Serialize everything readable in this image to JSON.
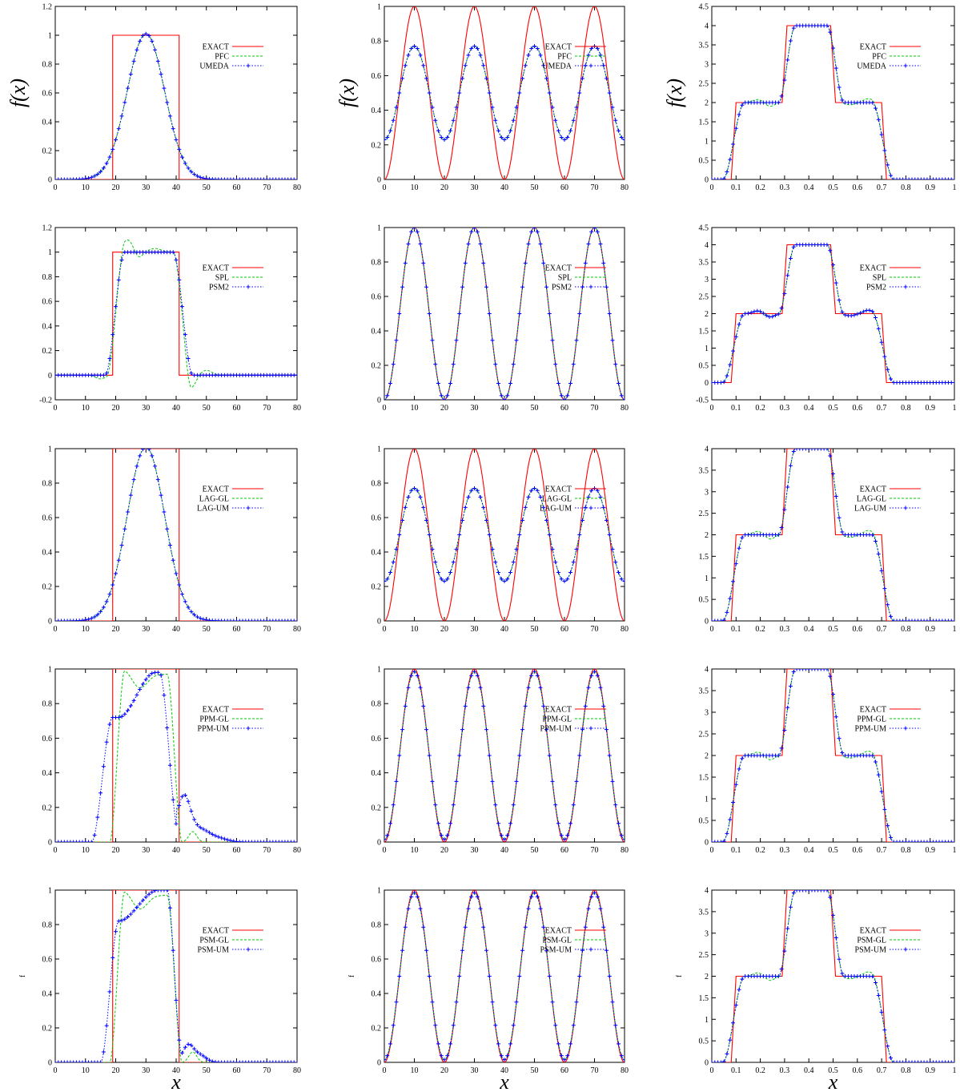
{
  "figure": {
    "ylabel_math": "f(x)",
    "ylabel_plain": "f",
    "xlabel": "x"
  },
  "colors": {
    "exact": "#ff0000",
    "green": "#00cc00",
    "blue": "#0000ff",
    "axis": "#000000"
  },
  "chart_data": [
    {
      "row": 0,
      "col": 0,
      "type": "line",
      "profile": "box",
      "ylim": [
        0,
        1.2
      ],
      "xlim": [
        0,
        80
      ],
      "yticks": [
        "0",
        "0.2",
        "0.4",
        "0.6",
        "0.8",
        "1",
        "1.2"
      ],
      "xticks": [
        "0",
        "10",
        "20",
        "30",
        "40",
        "50",
        "60",
        "70",
        "80"
      ],
      "legend": [
        "EXACT",
        "PFC",
        "UMEDA"
      ],
      "method_a": "smooth",
      "method_b": "smooth"
    },
    {
      "row": 0,
      "col": 1,
      "type": "line",
      "profile": "cos",
      "ylim": [
        0,
        1
      ],
      "xlim": [
        0,
        80
      ],
      "yticks": [
        "0",
        "0.2",
        "0.4",
        "0.6",
        "0.8",
        "1"
      ],
      "xticks": [
        "0",
        "10",
        "20",
        "30",
        "40",
        "50",
        "60",
        "70",
        "80"
      ],
      "legend": [
        "EXACT",
        "PFC",
        "UMEDA"
      ],
      "method_a": "damp",
      "method_b": "damp"
    },
    {
      "row": 0,
      "col": 2,
      "type": "line",
      "profile": "step",
      "ylim": [
        0,
        4.5
      ],
      "xlim": [
        0,
        1
      ],
      "yticks": [
        "0",
        "0.5",
        "1",
        "1.5",
        "2",
        "2.5",
        "3",
        "3.5",
        "4",
        "4.5"
      ],
      "xticks": [
        "0",
        "0.1",
        "0.2",
        "0.3",
        "0.4",
        "0.5",
        "0.6",
        "0.7",
        "0.8",
        "0.9",
        "1"
      ],
      "legend": [
        "EXACT",
        "PFC",
        "UMEDA"
      ],
      "method_a": "wiggle",
      "method_b": "smooth"
    },
    {
      "row": 1,
      "col": 0,
      "type": "line",
      "profile": "box",
      "ylim": [
        -0.2,
        1.2
      ],
      "xlim": [
        0,
        80
      ],
      "yticks": [
        "-0.2",
        "0",
        "0.2",
        "0.4",
        "0.6",
        "0.8",
        "1",
        "1.2"
      ],
      "xticks": [
        "0",
        "10",
        "20",
        "30",
        "40",
        "50",
        "60",
        "70",
        "80"
      ],
      "legend": [
        "EXACT",
        "SPL",
        "PSM2"
      ],
      "method_a": "gibbs",
      "method_b": "sharp"
    },
    {
      "row": 1,
      "col": 1,
      "type": "line",
      "profile": "cos",
      "ylim": [
        0,
        1
      ],
      "xlim": [
        0,
        80
      ],
      "yticks": [
        "0",
        "0.2",
        "0.4",
        "0.6",
        "0.8",
        "1"
      ],
      "xticks": [
        "0",
        "10",
        "20",
        "30",
        "40",
        "50",
        "60",
        "70",
        "80"
      ],
      "legend": [
        "EXACT",
        "SPL",
        "PSM2"
      ],
      "method_a": "exact",
      "method_b": "exact"
    },
    {
      "row": 1,
      "col": 2,
      "type": "line",
      "profile": "step",
      "ylim": [
        -0.5,
        4.5
      ],
      "xlim": [
        0,
        1
      ],
      "yticks": [
        "-0.5",
        "0",
        "0.5",
        "1",
        "1.5",
        "2",
        "2.5",
        "3",
        "3.5",
        "4",
        "4.5"
      ],
      "xticks": [
        "0",
        "0.1",
        "0.2",
        "0.3",
        "0.4",
        "0.5",
        "0.6",
        "0.7",
        "0.8",
        "0.9",
        "1"
      ],
      "legend": [
        "EXACT",
        "SPL",
        "PSM2"
      ],
      "method_a": "wiggle",
      "method_b": "wiggle"
    },
    {
      "row": 2,
      "col": 0,
      "type": "line",
      "profile": "box",
      "ylim": [
        0,
        1
      ],
      "xlim": [
        0,
        80
      ],
      "yticks": [
        "0",
        "0.2",
        "0.4",
        "0.6",
        "0.8",
        "1"
      ],
      "xticks": [
        "0",
        "10",
        "20",
        "30",
        "40",
        "50",
        "60",
        "70",
        "80"
      ],
      "legend": [
        "EXACT",
        "LAG-GL",
        "LAG-UM"
      ],
      "method_a": "smooth",
      "method_b": "smooth"
    },
    {
      "row": 2,
      "col": 1,
      "type": "line",
      "profile": "cos",
      "ylim": [
        0,
        1
      ],
      "xlim": [
        0,
        80
      ],
      "yticks": [
        "0",
        "0.2",
        "0.4",
        "0.6",
        "0.8",
        "1"
      ],
      "xticks": [
        "0",
        "10",
        "20",
        "30",
        "40",
        "50",
        "60",
        "70",
        "80"
      ],
      "legend": [
        "EXACT",
        "LAG-GL",
        "LAG-UM"
      ],
      "method_a": "damp",
      "method_b": "damp"
    },
    {
      "row": 2,
      "col": 2,
      "type": "line",
      "profile": "step",
      "ylim": [
        0,
        4
      ],
      "xlim": [
        0,
        1
      ],
      "yticks": [
        "0",
        "0.5",
        "1",
        "1.5",
        "2",
        "2.5",
        "3",
        "3.5",
        "4"
      ],
      "xticks": [
        "0",
        "0.1",
        "0.2",
        "0.3",
        "0.4",
        "0.5",
        "0.6",
        "0.7",
        "0.8",
        "0.9",
        "1"
      ],
      "legend": [
        "EXACT",
        "LAG-GL",
        "LAG-UM"
      ],
      "method_a": "wiggle",
      "method_b": "smooth"
    },
    {
      "row": 3,
      "col": 0,
      "type": "line",
      "profile": "box",
      "ylim": [
        0,
        1
      ],
      "xlim": [
        0,
        80
      ],
      "yticks": [
        "0",
        "0.2",
        "0.4",
        "0.6",
        "0.8",
        "1"
      ],
      "xticks": [
        "0",
        "10",
        "20",
        "30",
        "40",
        "50",
        "60",
        "70",
        "80"
      ],
      "legend": [
        "EXACT",
        "PPM-GL",
        "PPM-UM"
      ],
      "method_a": "skewA",
      "method_b": "skewB"
    },
    {
      "row": 3,
      "col": 1,
      "type": "line",
      "profile": "cos",
      "ylim": [
        0,
        1
      ],
      "xlim": [
        0,
        80
      ],
      "yticks": [
        "0",
        "0.2",
        "0.4",
        "0.6",
        "0.8",
        "1"
      ],
      "xticks": [
        "0",
        "10",
        "20",
        "30",
        "40",
        "50",
        "60",
        "70",
        "80"
      ],
      "legend": [
        "EXACT",
        "PPM-GL",
        "PPM-UM"
      ],
      "method_a": "near",
      "method_b": "near"
    },
    {
      "row": 3,
      "col": 2,
      "type": "line",
      "profile": "step",
      "ylim": [
        0,
        4
      ],
      "xlim": [
        0,
        1
      ],
      "yticks": [
        "0",
        "0.5",
        "1",
        "1.5",
        "2",
        "2.5",
        "3",
        "3.5",
        "4"
      ],
      "xticks": [
        "0",
        "0.1",
        "0.2",
        "0.3",
        "0.4",
        "0.5",
        "0.6",
        "0.7",
        "0.8",
        "0.9",
        "1"
      ],
      "legend": [
        "EXACT",
        "PPM-GL",
        "PPM-UM"
      ],
      "method_a": "wiggle",
      "method_b": "smooth"
    },
    {
      "row": 4,
      "col": 0,
      "type": "line",
      "profile": "box",
      "ylim": [
        0,
        1
      ],
      "xlim": [
        0,
        80
      ],
      "yticks": [
        "0",
        "0.2",
        "0.4",
        "0.6",
        "0.8",
        "1"
      ],
      "xticks": [
        "0",
        "10",
        "20",
        "30",
        "40",
        "50",
        "60",
        "70",
        "80"
      ],
      "legend": [
        "EXACT",
        "PSM-GL",
        "PSM-UM"
      ],
      "method_a": "skewA",
      "method_b": "skewC"
    },
    {
      "row": 4,
      "col": 1,
      "type": "line",
      "profile": "cos",
      "ylim": [
        0,
        1
      ],
      "xlim": [
        0,
        80
      ],
      "yticks": [
        "0",
        "0.2",
        "0.4",
        "0.6",
        "0.8",
        "1"
      ],
      "xticks": [
        "0",
        "10",
        "20",
        "30",
        "40",
        "50",
        "60",
        "70",
        "80"
      ],
      "legend": [
        "EXACT",
        "PSM-GL",
        "PSM-UM"
      ],
      "method_a": "near",
      "method_b": "near"
    },
    {
      "row": 4,
      "col": 2,
      "type": "line",
      "profile": "step",
      "ylim": [
        0,
        4
      ],
      "xlim": [
        0,
        1
      ],
      "yticks": [
        "0",
        "0.5",
        "1",
        "1.5",
        "2",
        "2.5",
        "3",
        "3.5",
        "4"
      ],
      "xticks": [
        "0",
        "0.1",
        "0.2",
        "0.3",
        "0.4",
        "0.5",
        "0.6",
        "0.7",
        "0.8",
        "0.9",
        "1"
      ],
      "legend": [
        "EXACT",
        "PSM-GL",
        "PSM-UM"
      ],
      "method_a": "wiggle",
      "method_b": "smooth"
    }
  ]
}
